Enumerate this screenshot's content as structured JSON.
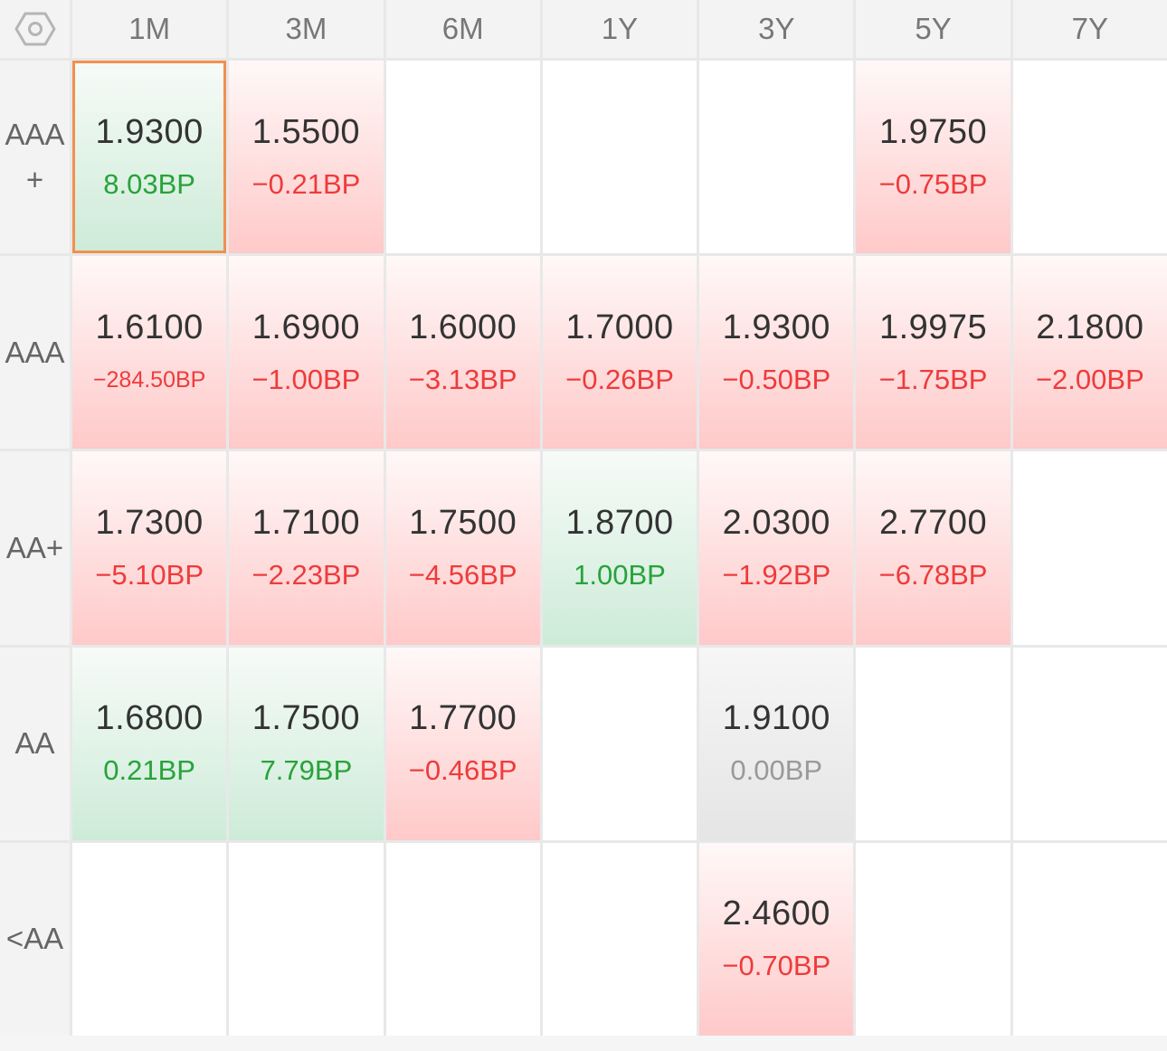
{
  "settings_icon": "hexagon-gear-icon",
  "colors": {
    "negative": "#ee3b3b",
    "positive": "#27a33a",
    "flat": "#999999",
    "selected_border": "#f29050"
  },
  "columns": [
    "1M",
    "3M",
    "6M",
    "1Y",
    "3Y",
    "5Y",
    "7Y"
  ],
  "rows": [
    {
      "label": "AAA+",
      "cells": [
        {
          "rate": "1.9300",
          "change": "8.03BP",
          "trend": "pos",
          "selected": true
        },
        {
          "rate": "1.5500",
          "change": "−0.21BP",
          "trend": "neg"
        },
        null,
        null,
        null,
        {
          "rate": "1.9750",
          "change": "−0.75BP",
          "trend": "neg"
        },
        null
      ]
    },
    {
      "label": "AAA",
      "cells": [
        {
          "rate": "1.6100",
          "change": "−284.50BP",
          "trend": "neg"
        },
        {
          "rate": "1.6900",
          "change": "−1.00BP",
          "trend": "neg"
        },
        {
          "rate": "1.6000",
          "change": "−3.13BP",
          "trend": "neg"
        },
        {
          "rate": "1.7000",
          "change": "−0.26BP",
          "trend": "neg"
        },
        {
          "rate": "1.9300",
          "change": "−0.50BP",
          "trend": "neg"
        },
        {
          "rate": "1.9975",
          "change": "−1.75BP",
          "trend": "neg"
        },
        {
          "rate": "2.1800",
          "change": "−2.00BP",
          "trend": "neg"
        }
      ]
    },
    {
      "label": "AA+",
      "cells": [
        {
          "rate": "1.7300",
          "change": "−5.10BP",
          "trend": "neg"
        },
        {
          "rate": "1.7100",
          "change": "−2.23BP",
          "trend": "neg"
        },
        {
          "rate": "1.7500",
          "change": "−4.56BP",
          "trend": "neg"
        },
        {
          "rate": "1.8700",
          "change": "1.00BP",
          "trend": "pos"
        },
        {
          "rate": "2.0300",
          "change": "−1.92BP",
          "trend": "neg"
        },
        {
          "rate": "2.7700",
          "change": "−6.78BP",
          "trend": "neg"
        },
        null
      ]
    },
    {
      "label": "AA",
      "cells": [
        {
          "rate": "1.6800",
          "change": "0.21BP",
          "trend": "pos"
        },
        {
          "rate": "1.7500",
          "change": "7.79BP",
          "trend": "pos"
        },
        {
          "rate": "1.7700",
          "change": "−0.46BP",
          "trend": "neg"
        },
        null,
        {
          "rate": "1.9100",
          "change": "0.00BP",
          "trend": "flat"
        },
        null,
        null
      ]
    },
    {
      "label": "<AA",
      "cells": [
        null,
        null,
        null,
        null,
        {
          "rate": "2.4600",
          "change": "−0.70BP",
          "trend": "neg"
        },
        null,
        null
      ]
    }
  ]
}
